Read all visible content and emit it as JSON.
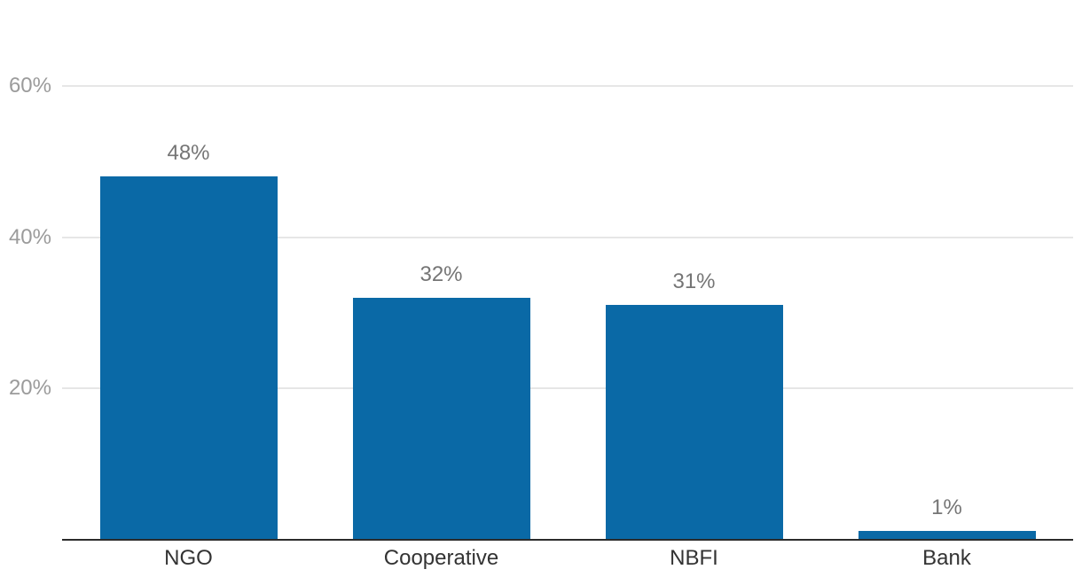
{
  "chart_data": {
    "type": "bar",
    "title": "",
    "xlabel": "",
    "ylabel": "",
    "categories": [
      "NGO",
      "Cooperative",
      "NBFI",
      "Bank"
    ],
    "values": [
      48,
      32,
      31,
      1
    ],
    "value_labels": [
      "48%",
      "32%",
      "31%",
      "1%"
    ],
    "yticks": [
      {
        "value": 20,
        "label": "20%"
      },
      {
        "value": 40,
        "label": "40%"
      },
      {
        "value": 60,
        "label": "60%"
      }
    ],
    "ylim": [
      0,
      72
    ],
    "grid": true,
    "legend": "none",
    "value_unit": "%",
    "colors": {
      "bar": "#0a69a6",
      "grid_line": "#e6e6e6",
      "axis_line": "#2b2b2b",
      "tick_label": "#9b9b9b",
      "value_label": "#757575",
      "category_label": "#333333",
      "background": "#ffffff"
    }
  }
}
